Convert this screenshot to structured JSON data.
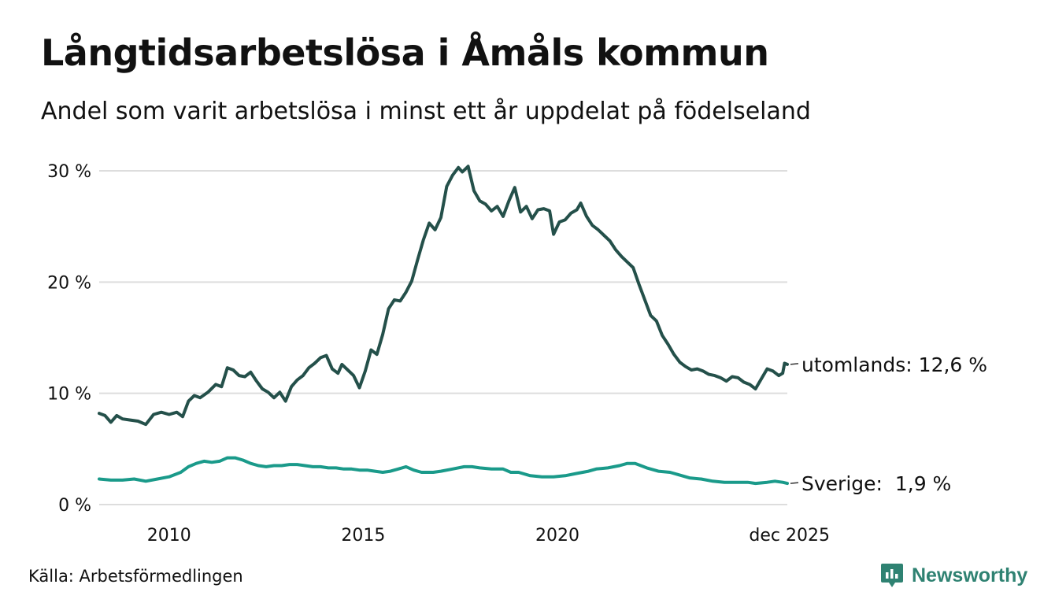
{
  "header": {
    "title": "Långtidsarbetslösa i Åmåls kommun",
    "subtitle": "Andel som varit arbetslösa i minst ett år uppdelat på födelseland"
  },
  "footer": {
    "source": "Källa: Arbetsförmedlingen",
    "brand": "Newsworthy"
  },
  "colors": {
    "utomlands": "#24504a",
    "sverige": "#1a9a8a",
    "grid": "#dddddd",
    "brand": "#2f8272"
  },
  "icons": {
    "brand_logo": "newsworthy-chart-icon"
  },
  "chart_data": {
    "type": "line",
    "title": "Långtidsarbetslösa i Åmåls kommun",
    "subtitle": "Andel som varit arbetslösa i minst ett år uppdelat på födelseland",
    "xlabel": "",
    "ylabel": "",
    "ylim": [
      0,
      30
    ],
    "xlim": [
      2008.2,
      2025.92
    ],
    "yticks": [
      0,
      10,
      20,
      30
    ],
    "ytick_labels": [
      "0 %",
      "10 %",
      "20 %",
      "30 %"
    ],
    "xticks": [
      2010,
      2015,
      2020,
      2025.92
    ],
    "xtick_labels": [
      "2010",
      "2015",
      "2020",
      "dec 2025"
    ],
    "grid": true,
    "series": [
      {
        "name": "utomlands",
        "end_label": "utomlands: 12,6 %",
        "end_value": 12.6,
        "points": [
          [
            2008.2,
            8.2
          ],
          [
            2008.35,
            8.0
          ],
          [
            2008.5,
            7.4
          ],
          [
            2008.65,
            8.0
          ],
          [
            2008.8,
            7.7
          ],
          [
            2009.0,
            7.6
          ],
          [
            2009.2,
            7.5
          ],
          [
            2009.4,
            7.2
          ],
          [
            2009.6,
            8.1
          ],
          [
            2009.8,
            8.3
          ],
          [
            2010.0,
            8.1
          ],
          [
            2010.2,
            8.3
          ],
          [
            2010.35,
            7.9
          ],
          [
            2010.5,
            9.3
          ],
          [
            2010.65,
            9.8
          ],
          [
            2010.8,
            9.6
          ],
          [
            2011.0,
            10.1
          ],
          [
            2011.2,
            10.8
          ],
          [
            2011.35,
            10.6
          ],
          [
            2011.5,
            12.3
          ],
          [
            2011.65,
            12.1
          ],
          [
            2011.8,
            11.6
          ],
          [
            2011.95,
            11.5
          ],
          [
            2012.1,
            11.9
          ],
          [
            2012.25,
            11.1
          ],
          [
            2012.4,
            10.4
          ],
          [
            2012.55,
            10.1
          ],
          [
            2012.7,
            9.6
          ],
          [
            2012.85,
            10.1
          ],
          [
            2013.0,
            9.3
          ],
          [
            2013.15,
            10.6
          ],
          [
            2013.3,
            11.2
          ],
          [
            2013.45,
            11.6
          ],
          [
            2013.6,
            12.3
          ],
          [
            2013.75,
            12.7
          ],
          [
            2013.9,
            13.2
          ],
          [
            2014.05,
            13.4
          ],
          [
            2014.2,
            12.2
          ],
          [
            2014.35,
            11.8
          ],
          [
            2014.45,
            12.6
          ],
          [
            2014.6,
            12.1
          ],
          [
            2014.75,
            11.6
          ],
          [
            2014.9,
            10.5
          ],
          [
            2015.05,
            12.0
          ],
          [
            2015.2,
            13.9
          ],
          [
            2015.35,
            13.5
          ],
          [
            2015.5,
            15.3
          ],
          [
            2015.65,
            17.6
          ],
          [
            2015.8,
            18.4
          ],
          [
            2015.95,
            18.3
          ],
          [
            2016.1,
            19.1
          ],
          [
            2016.25,
            20.1
          ],
          [
            2016.4,
            22.0
          ],
          [
            2016.55,
            23.8
          ],
          [
            2016.7,
            25.3
          ],
          [
            2016.85,
            24.7
          ],
          [
            2017.0,
            25.8
          ],
          [
            2017.15,
            28.6
          ],
          [
            2017.3,
            29.6
          ],
          [
            2017.45,
            30.3
          ],
          [
            2017.55,
            29.9
          ],
          [
            2017.7,
            30.4
          ],
          [
            2017.85,
            28.2
          ],
          [
            2018.0,
            27.3
          ],
          [
            2018.15,
            27.0
          ],
          [
            2018.3,
            26.4
          ],
          [
            2018.45,
            26.8
          ],
          [
            2018.6,
            25.9
          ],
          [
            2018.75,
            27.3
          ],
          [
            2018.9,
            28.5
          ],
          [
            2019.05,
            26.3
          ],
          [
            2019.2,
            26.8
          ],
          [
            2019.35,
            25.7
          ],
          [
            2019.5,
            26.5
          ],
          [
            2019.65,
            26.6
          ],
          [
            2019.8,
            26.4
          ],
          [
            2019.9,
            24.3
          ],
          [
            2020.05,
            25.4
          ],
          [
            2020.2,
            25.6
          ],
          [
            2020.35,
            26.2
          ],
          [
            2020.5,
            26.5
          ],
          [
            2020.6,
            27.1
          ],
          [
            2020.75,
            25.9
          ],
          [
            2020.9,
            25.1
          ],
          [
            2021.05,
            24.7
          ],
          [
            2021.2,
            24.2
          ],
          [
            2021.35,
            23.7
          ],
          [
            2021.5,
            22.9
          ],
          [
            2021.65,
            22.3
          ],
          [
            2021.8,
            21.8
          ],
          [
            2021.95,
            21.3
          ],
          [
            2022.1,
            19.8
          ],
          [
            2022.25,
            18.4
          ],
          [
            2022.4,
            17.0
          ],
          [
            2022.55,
            16.5
          ],
          [
            2022.7,
            15.2
          ],
          [
            2022.85,
            14.4
          ],
          [
            2023.0,
            13.5
          ],
          [
            2023.15,
            12.8
          ],
          [
            2023.3,
            12.4
          ],
          [
            2023.45,
            12.1
          ],
          [
            2023.6,
            12.2
          ],
          [
            2023.75,
            12.0
          ],
          [
            2023.9,
            11.7
          ],
          [
            2024.05,
            11.6
          ],
          [
            2024.2,
            11.4
          ],
          [
            2024.35,
            11.1
          ],
          [
            2024.5,
            11.5
          ],
          [
            2024.65,
            11.4
          ],
          [
            2024.8,
            11.0
          ],
          [
            2024.95,
            10.8
          ],
          [
            2025.1,
            10.4
          ],
          [
            2025.25,
            11.3
          ],
          [
            2025.4,
            12.2
          ],
          [
            2025.55,
            12.0
          ],
          [
            2025.7,
            11.6
          ],
          [
            2025.8,
            11.8
          ],
          [
            2025.85,
            12.7
          ],
          [
            2025.92,
            12.6
          ]
        ]
      },
      {
        "name": "Sverige",
        "end_label": "Sverige:  1,9 %",
        "end_value": 1.9,
        "points": [
          [
            2008.2,
            2.3
          ],
          [
            2008.5,
            2.2
          ],
          [
            2008.8,
            2.2
          ],
          [
            2009.1,
            2.3
          ],
          [
            2009.4,
            2.1
          ],
          [
            2009.7,
            2.3
          ],
          [
            2010.0,
            2.5
          ],
          [
            2010.3,
            2.9
          ],
          [
            2010.5,
            3.4
          ],
          [
            2010.7,
            3.7
          ],
          [
            2010.9,
            3.9
          ],
          [
            2011.1,
            3.8
          ],
          [
            2011.3,
            3.9
          ],
          [
            2011.5,
            4.2
          ],
          [
            2011.7,
            4.2
          ],
          [
            2011.9,
            4.0
          ],
          [
            2012.1,
            3.7
          ],
          [
            2012.3,
            3.5
          ],
          [
            2012.5,
            3.4
          ],
          [
            2012.7,
            3.5
          ],
          [
            2012.9,
            3.5
          ],
          [
            2013.1,
            3.6
          ],
          [
            2013.3,
            3.6
          ],
          [
            2013.5,
            3.5
          ],
          [
            2013.7,
            3.4
          ],
          [
            2013.9,
            3.4
          ],
          [
            2014.1,
            3.3
          ],
          [
            2014.3,
            3.3
          ],
          [
            2014.5,
            3.2
          ],
          [
            2014.7,
            3.2
          ],
          [
            2014.9,
            3.1
          ],
          [
            2015.1,
            3.1
          ],
          [
            2015.3,
            3.0
          ],
          [
            2015.5,
            2.9
          ],
          [
            2015.7,
            3.0
          ],
          [
            2015.9,
            3.2
          ],
          [
            2016.1,
            3.4
          ],
          [
            2016.3,
            3.1
          ],
          [
            2016.5,
            2.9
          ],
          [
            2016.8,
            2.9
          ],
          [
            2017.0,
            3.0
          ],
          [
            2017.3,
            3.2
          ],
          [
            2017.6,
            3.4
          ],
          [
            2017.8,
            3.4
          ],
          [
            2018.0,
            3.3
          ],
          [
            2018.3,
            3.2
          ],
          [
            2018.6,
            3.2
          ],
          [
            2018.8,
            2.9
          ],
          [
            2019.0,
            2.9
          ],
          [
            2019.3,
            2.6
          ],
          [
            2019.6,
            2.5
          ],
          [
            2019.9,
            2.5
          ],
          [
            2020.2,
            2.6
          ],
          [
            2020.5,
            2.8
          ],
          [
            2020.8,
            3.0
          ],
          [
            2021.0,
            3.2
          ],
          [
            2021.3,
            3.3
          ],
          [
            2021.6,
            3.5
          ],
          [
            2021.8,
            3.7
          ],
          [
            2022.0,
            3.7
          ],
          [
            2022.3,
            3.3
          ],
          [
            2022.6,
            3.0
          ],
          [
            2022.9,
            2.9
          ],
          [
            2023.1,
            2.7
          ],
          [
            2023.4,
            2.4
          ],
          [
            2023.7,
            2.3
          ],
          [
            2024.0,
            2.1
          ],
          [
            2024.3,
            2.0
          ],
          [
            2024.6,
            2.0
          ],
          [
            2024.9,
            2.0
          ],
          [
            2025.1,
            1.9
          ],
          [
            2025.4,
            2.0
          ],
          [
            2025.6,
            2.1
          ],
          [
            2025.8,
            2.0
          ],
          [
            2025.92,
            1.9
          ]
        ]
      }
    ]
  }
}
